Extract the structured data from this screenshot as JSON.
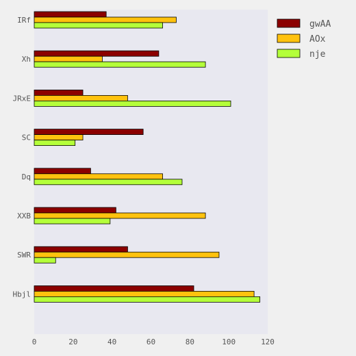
{
  "chart_data": {
    "type": "bar",
    "orientation": "horizontal",
    "categories": [
      "IRf",
      "Xh",
      "JRxE",
      "SC",
      "Dq",
      "XXB",
      "SWR",
      "Hbjl"
    ],
    "series": [
      {
        "name": "gwAA",
        "color": "#8b0000",
        "values": [
          37,
          64,
          25,
          56,
          29,
          42,
          48,
          82
        ]
      },
      {
        "name": "AOx",
        "color": "#ffc20e",
        "values": [
          73,
          35,
          48,
          25,
          66,
          88,
          95,
          113
        ]
      },
      {
        "name": "nje",
        "color": "#b4ff3a",
        "values": [
          66,
          88,
          101,
          21,
          76,
          39,
          11,
          116
        ]
      }
    ],
    "xlim": [
      0,
      120
    ],
    "xticks": [
      0,
      20,
      40,
      60,
      80,
      100,
      120
    ],
    "grid": false,
    "legend_position": "top-right",
    "plot_background": "#e8e8f0",
    "page_background": "#f0f0f0"
  }
}
